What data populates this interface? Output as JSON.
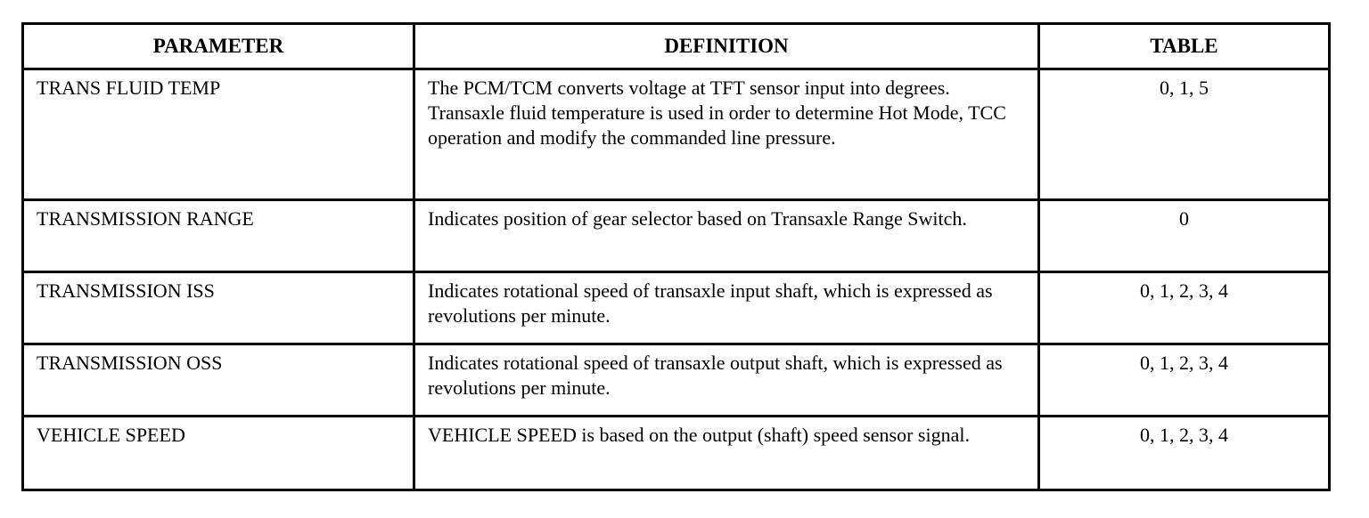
{
  "table": {
    "headers": [
      "PARAMETER",
      "DEFINITION",
      "TABLE"
    ],
    "rows": [
      {
        "parameter": "TRANS FLUID TEMP",
        "definition": "The PCM/TCM converts voltage at TFT sensor input into degrees. Transaxle fluid temperature is used in order to determine Hot Mode, TCC operation and modify the commanded line pressure.",
        "table": "0, 1, 5"
      },
      {
        "parameter": "TRANSMISSION RANGE",
        "definition": "Indicates position of gear selector based on Transaxle Range Switch.",
        "table": "0"
      },
      {
        "parameter": "TRANSMISSION ISS",
        "definition": "Indicates rotational speed of transaxle input shaft, which is expressed as revolutions per minute.",
        "table": "0, 1, 2, 3, 4"
      },
      {
        "parameter": "TRANSMISSION OSS",
        "definition": "Indicates rotational speed of transaxle output shaft, which is expressed as revolutions per minute.",
        "table": "0, 1, 2, 3, 4"
      },
      {
        "parameter": "VEHICLE SPEED",
        "definition": "VEHICLE SPEED is based on the output (shaft) speed sensor signal.",
        "table": "0, 1, 2, 3, 4"
      }
    ]
  }
}
